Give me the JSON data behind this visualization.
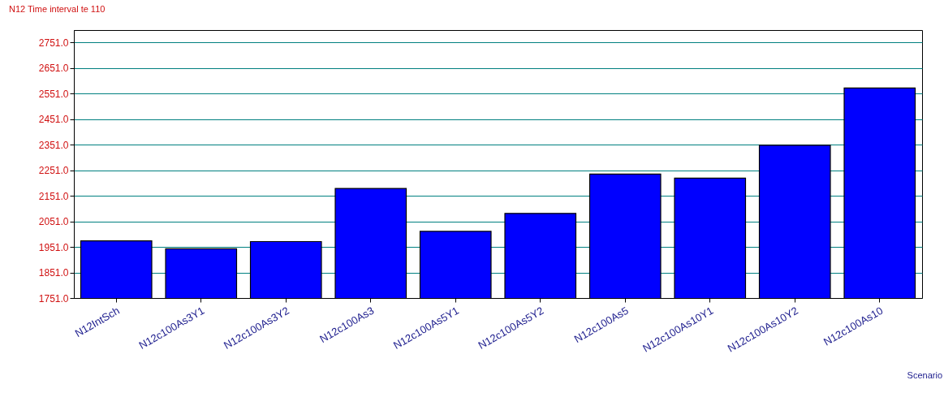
{
  "chart_data": {
    "type": "bar",
    "title": "N12 Time interval te 110",
    "xlabel": "Scenario",
    "categories": [
      "N12IntSch",
      "N12c100As3Y1",
      "N12c100As3Y2",
      "N12c100As3",
      "N12c100As5Y1",
      "N12c100As5Y2",
      "N12c100As5",
      "N12c100As10Y1",
      "N12c100As10Y2",
      "N12c100As10"
    ],
    "values": [
      1975,
      1944,
      1972,
      2180,
      2012,
      2082,
      2236,
      2220,
      2349,
      2573
    ],
    "color": "#0000ff",
    "ylim": [
      1751,
      2800
    ],
    "yticks": [
      {
        "value": 1751,
        "label": "1751.0"
      },
      {
        "value": 1851,
        "label": "1851.0"
      },
      {
        "value": 1951,
        "label": "1951.0"
      },
      {
        "value": 2051,
        "label": "2051.0"
      },
      {
        "value": 2151,
        "label": "2151.0"
      },
      {
        "value": 2251,
        "label": "2251.0"
      },
      {
        "value": 2351,
        "label": "2351.0"
      },
      {
        "value": 2451,
        "label": "2451.0"
      },
      {
        "value": 2551,
        "label": "2551.0"
      },
      {
        "value": 2651,
        "label": "2651.0"
      },
      {
        "value": 2751,
        "label": "2751.0"
      }
    ],
    "grid": "y"
  }
}
